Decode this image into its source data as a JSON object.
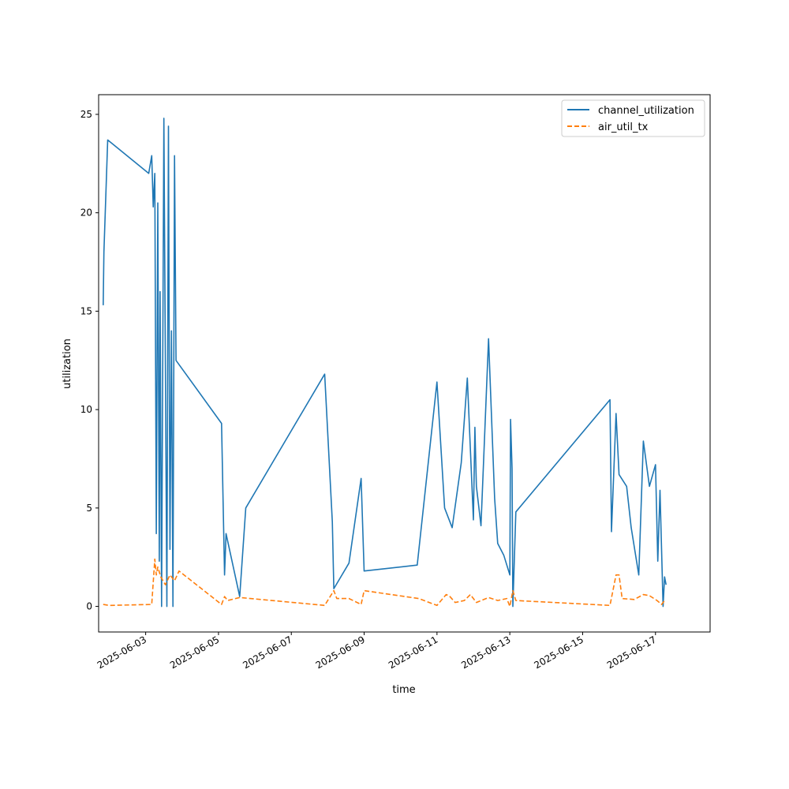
{
  "chart_data": {
    "type": "line",
    "xlabel": "time",
    "ylabel": "utilization",
    "x_is_date": true,
    "xlim": [
      "2025-06-01T17:00",
      "2025-06-18T12:00"
    ],
    "ylim": [
      -1.3,
      26.0
    ],
    "x_ticks": [
      "2025-06-03",
      "2025-06-05",
      "2025-06-07",
      "2025-06-09",
      "2025-06-11",
      "2025-06-13",
      "2025-06-15",
      "2025-06-17"
    ],
    "y_ticks": [
      0,
      5,
      10,
      15,
      20,
      25
    ],
    "grid": false,
    "legend_position": "upper right",
    "series": [
      {
        "name": "channel_utilization",
        "color": "#1f77b4",
        "dash": "solid",
        "points": [
          [
            "2025-06-01T20:00",
            15.3
          ],
          [
            "2025-06-01T20:30",
            18.0
          ],
          [
            "2025-06-01T23:00",
            23.7
          ],
          [
            "2025-06-03T02:00",
            22.0
          ],
          [
            "2025-06-03T04:00",
            22.9
          ],
          [
            "2025-06-03T05:00",
            20.3
          ],
          [
            "2025-06-03T06:00",
            22.0
          ],
          [
            "2025-06-03T07:00",
            3.7
          ],
          [
            "2025-06-03T08:00",
            20.5
          ],
          [
            "2025-06-03T09:00",
            2.3
          ],
          [
            "2025-06-03T09:30",
            16.0
          ],
          [
            "2025-06-03T10:30",
            0.0
          ],
          [
            "2025-06-03T12:00",
            24.8
          ],
          [
            "2025-06-03T14:00",
            0.0
          ],
          [
            "2025-06-03T15:00",
            24.4
          ],
          [
            "2025-06-03T16:00",
            2.9
          ],
          [
            "2025-06-03T17:00",
            14.0
          ],
          [
            "2025-06-03T18:00",
            0.0
          ],
          [
            "2025-06-03T19:00",
            22.9
          ],
          [
            "2025-06-03T20:00",
            12.5
          ],
          [
            "2025-06-05T02:00",
            9.3
          ],
          [
            "2025-06-05T04:00",
            1.6
          ],
          [
            "2025-06-05T05:00",
            3.7
          ],
          [
            "2025-06-05T14:00",
            0.5
          ],
          [
            "2025-06-05T18:00",
            5.0
          ],
          [
            "2025-06-07T22:00",
            11.8
          ],
          [
            "2025-06-08T03:00",
            4.3
          ],
          [
            "2025-06-08T04:00",
            0.9
          ],
          [
            "2025-06-08T14:00",
            2.2
          ],
          [
            "2025-06-08T22:00",
            6.5
          ],
          [
            "2025-06-09T00:00",
            1.8
          ],
          [
            "2025-06-10T11:00",
            2.1
          ],
          [
            "2025-06-11T00:00",
            11.4
          ],
          [
            "2025-06-11T05:00",
            5.0
          ],
          [
            "2025-06-11T10:00",
            4.0
          ],
          [
            "2025-06-11T16:00",
            7.3
          ],
          [
            "2025-06-11T20:00",
            11.6
          ],
          [
            "2025-06-12T00:00",
            4.4
          ],
          [
            "2025-06-12T01:00",
            9.1
          ],
          [
            "2025-06-12T02:00",
            6.1
          ],
          [
            "2025-06-12T05:00",
            4.1
          ],
          [
            "2025-06-12T10:00",
            13.6
          ],
          [
            "2025-06-12T14:00",
            5.5
          ],
          [
            "2025-06-12T16:00",
            3.2
          ],
          [
            "2025-06-12T20:00",
            2.6
          ],
          [
            "2025-06-13T00:00",
            1.6
          ],
          [
            "2025-06-13T00:30",
            9.5
          ],
          [
            "2025-06-13T01:30",
            7.0
          ],
          [
            "2025-06-13T02:00",
            0.0
          ],
          [
            "2025-06-13T04:00",
            4.8
          ],
          [
            "2025-06-15T18:00",
            10.5
          ],
          [
            "2025-06-15T19:00",
            3.8
          ],
          [
            "2025-06-15T22:00",
            9.8
          ],
          [
            "2025-06-16T00:00",
            6.7
          ],
          [
            "2025-06-16T05:00",
            6.1
          ],
          [
            "2025-06-16T08:00",
            4.0
          ],
          [
            "2025-06-16T13:00",
            1.6
          ],
          [
            "2025-06-16T16:00",
            8.4
          ],
          [
            "2025-06-16T20:00",
            6.1
          ],
          [
            "2025-06-17T00:00",
            7.2
          ],
          [
            "2025-06-17T01:30",
            2.3
          ],
          [
            "2025-06-17T03:00",
            5.9
          ],
          [
            "2025-06-17T05:00",
            0.0
          ],
          [
            "2025-06-17T06:00",
            1.5
          ],
          [
            "2025-06-17T07:00",
            1.1
          ]
        ]
      },
      {
        "name": "air_util_tx",
        "color": "#ff7f0e",
        "dash": "dashed",
        "points": [
          [
            "2025-06-01T20:00",
            0.1
          ],
          [
            "2025-06-02T00:00",
            0.05
          ],
          [
            "2025-06-03T04:00",
            0.1
          ],
          [
            "2025-06-03T06:00",
            2.4
          ],
          [
            "2025-06-03T07:00",
            1.6
          ],
          [
            "2025-06-03T08:00",
            2.0
          ],
          [
            "2025-06-03T10:00",
            1.5
          ],
          [
            "2025-06-03T13:00",
            1.1
          ],
          [
            "2025-06-03T16:00",
            1.6
          ],
          [
            "2025-06-03T19:00",
            1.3
          ],
          [
            "2025-06-03T22:00",
            1.8
          ],
          [
            "2025-06-05T02:00",
            0.1
          ],
          [
            "2025-06-05T04:00",
            0.5
          ],
          [
            "2025-06-05T06:00",
            0.3
          ],
          [
            "2025-06-05T14:00",
            0.45
          ],
          [
            "2025-06-07T22:00",
            0.05
          ],
          [
            "2025-06-08T04:00",
            0.8
          ],
          [
            "2025-06-08T06:00",
            0.4
          ],
          [
            "2025-06-08T14:00",
            0.4
          ],
          [
            "2025-06-08T22:00",
            0.1
          ],
          [
            "2025-06-09T00:00",
            0.8
          ],
          [
            "2025-06-10T12:00",
            0.4
          ],
          [
            "2025-06-11T00:00",
            0.05
          ],
          [
            "2025-06-11T06:00",
            0.6
          ],
          [
            "2025-06-11T08:00",
            0.55
          ],
          [
            "2025-06-11T12:00",
            0.2
          ],
          [
            "2025-06-11T18:00",
            0.3
          ],
          [
            "2025-06-11T22:00",
            0.6
          ],
          [
            "2025-06-12T02:00",
            0.2
          ],
          [
            "2025-06-12T10:00",
            0.45
          ],
          [
            "2025-06-12T16:00",
            0.3
          ],
          [
            "2025-06-12T22:00",
            0.4
          ],
          [
            "2025-06-13T00:00",
            0.0
          ],
          [
            "2025-06-13T02:00",
            0.8
          ],
          [
            "2025-06-13T04:00",
            0.3
          ],
          [
            "2025-06-15T18:00",
            0.05
          ],
          [
            "2025-06-15T22:00",
            1.6
          ],
          [
            "2025-06-16T00:00",
            1.6
          ],
          [
            "2025-06-16T02:00",
            0.4
          ],
          [
            "2025-06-16T10:00",
            0.35
          ],
          [
            "2025-06-16T16:00",
            0.6
          ],
          [
            "2025-06-16T20:00",
            0.55
          ],
          [
            "2025-06-17T01:00",
            0.3
          ],
          [
            "2025-06-17T04:00",
            0.1
          ],
          [
            "2025-06-17T06:00",
            0.3
          ]
        ]
      }
    ]
  }
}
